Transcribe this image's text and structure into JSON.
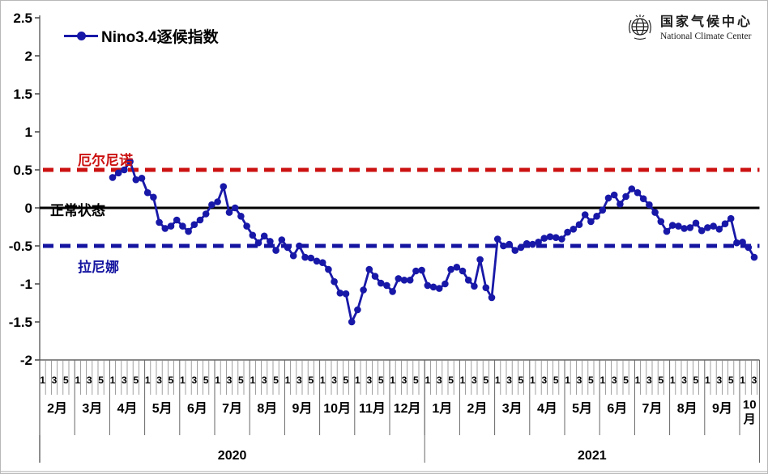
{
  "legend": {
    "label": "Nino3.4逐候指数"
  },
  "logo": {
    "cn": "国家气候中心",
    "en": "National Climate Center",
    "icon": "globe-icon"
  },
  "annotations": {
    "el_nino": "厄尔尼诺",
    "normal": "正常状态",
    "la_nina": "拉尼娜"
  },
  "colors": {
    "series": "#1818A8",
    "el_nino_line": "#CC1111",
    "normal_line": "#000000",
    "la_nina_line": "#1414A0",
    "grid": "#888888",
    "axis": "#333333"
  },
  "chart_data": {
    "type": "line",
    "title": "Nino3.4逐候指数",
    "ylabel": "",
    "xlabel": "",
    "ylim": [
      -2,
      2.5
    ],
    "yticks": [
      "2.5",
      "2",
      "1.5",
      "1",
      "0.5",
      "0",
      "-0.5",
      "-1",
      "-1.5",
      "-2"
    ],
    "legend_position": "top-left",
    "grid": "x-only-below-axis",
    "reference_lines": [
      {
        "name": "el_nino_threshold",
        "value": 0.5,
        "style": "dashed",
        "color": "#CC1111",
        "label": "厄尔尼诺"
      },
      {
        "name": "normal_state",
        "value": 0,
        "style": "solid",
        "color": "#000000",
        "label": "正常状态"
      },
      {
        "name": "la_nina_threshold",
        "value": -0.5,
        "style": "dashed",
        "color": "#1414A0",
        "label": "拉尼娜"
      }
    ],
    "x_axis": {
      "pentad_note": "each month divided into 6 pentads (候), ticks labeled 1/3/5",
      "months": [
        {
          "year": 2020,
          "label": "2月",
          "cells": 6,
          "ticks": [
            "1",
            "3",
            "5"
          ]
        },
        {
          "year": 2020,
          "label": "3月",
          "cells": 6,
          "ticks": [
            "1",
            "3",
            "5"
          ]
        },
        {
          "year": 2020,
          "label": "4月",
          "cells": 6,
          "ticks": [
            "1",
            "3",
            "5"
          ]
        },
        {
          "year": 2020,
          "label": "5月",
          "cells": 6,
          "ticks": [
            "1",
            "3",
            "5"
          ]
        },
        {
          "year": 2020,
          "label": "6月",
          "cells": 6,
          "ticks": [
            "1",
            "3",
            "5"
          ]
        },
        {
          "year": 2020,
          "label": "7月",
          "cells": 6,
          "ticks": [
            "1",
            "3",
            "5"
          ]
        },
        {
          "year": 2020,
          "label": "8月",
          "cells": 6,
          "ticks": [
            "1",
            "3",
            "5"
          ]
        },
        {
          "year": 2020,
          "label": "9月",
          "cells": 6,
          "ticks": [
            "1",
            "3",
            "5"
          ]
        },
        {
          "year": 2020,
          "label": "10月",
          "cells": 6,
          "ticks": [
            "1",
            "3",
            "5"
          ]
        },
        {
          "year": 2020,
          "label": "11月",
          "cells": 6,
          "ticks": [
            "1",
            "3",
            "5"
          ]
        },
        {
          "year": 2020,
          "label": "12月",
          "cells": 6,
          "ticks": [
            "1",
            "3",
            "5"
          ]
        },
        {
          "year": 2021,
          "label": "1月",
          "cells": 6,
          "ticks": [
            "1",
            "3",
            "5"
          ]
        },
        {
          "year": 2021,
          "label": "2月",
          "cells": 6,
          "ticks": [
            "1",
            "3",
            "5"
          ]
        },
        {
          "year": 2021,
          "label": "3月",
          "cells": 6,
          "ticks": [
            "1",
            "3",
            "5"
          ]
        },
        {
          "year": 2021,
          "label": "4月",
          "cells": 6,
          "ticks": [
            "1",
            "3",
            "5"
          ]
        },
        {
          "year": 2021,
          "label": "5月",
          "cells": 6,
          "ticks": [
            "1",
            "3",
            "5"
          ]
        },
        {
          "year": 2021,
          "label": "6月",
          "cells": 6,
          "ticks": [
            "1",
            "3",
            "5"
          ]
        },
        {
          "year": 2021,
          "label": "7月",
          "cells": 6,
          "ticks": [
            "1",
            "3",
            "5"
          ]
        },
        {
          "year": 2021,
          "label": "8月",
          "cells": 6,
          "ticks": [
            "1",
            "3",
            "5"
          ]
        },
        {
          "year": 2021,
          "label": "9月",
          "cells": 6,
          "ticks": [
            "1",
            "3",
            "5"
          ]
        },
        {
          "year": 2021,
          "label": "10月",
          "cells": 3.4,
          "ticks": [
            "1",
            "3"
          ],
          "label_lines": [
            "10",
            "月"
          ]
        }
      ],
      "years": [
        {
          "label": "2020",
          "from_month": 0,
          "to_month": 10
        },
        {
          "label": "2021",
          "from_month": 11,
          "to_month": 20
        }
      ]
    },
    "series": [
      {
        "name": "Nino3.4逐候指数",
        "color": "#1818A8",
        "marker": "circle",
        "start_month_index": 2,
        "values_by_month": [
          {
            "year": 2020,
            "month": "4月",
            "values": [
              0.4,
              0.46,
              0.5,
              0.61,
              0.37,
              0.39
            ]
          },
          {
            "year": 2020,
            "month": "5月",
            "values": [
              0.2,
              0.14,
              -0.19,
              -0.27,
              -0.24,
              -0.16
            ]
          },
          {
            "year": 2020,
            "month": "6月",
            "values": [
              -0.24,
              -0.31,
              -0.22,
              -0.16,
              -0.08,
              0.04
            ]
          },
          {
            "year": 2020,
            "month": "7月",
            "values": [
              0.08,
              0.28,
              -0.06,
              0.0,
              -0.11,
              -0.24
            ]
          },
          {
            "year": 2020,
            "month": "8月",
            "values": [
              -0.36,
              -0.46,
              -0.37,
              -0.44,
              -0.56,
              -0.42
            ]
          },
          {
            "year": 2020,
            "month": "9月",
            "values": [
              -0.52,
              -0.63,
              -0.5,
              -0.65,
              -0.66,
              -0.7
            ]
          },
          {
            "year": 2020,
            "month": "10月",
            "values": [
              -0.72,
              -0.81,
              -0.97,
              -1.12,
              -1.13,
              -1.5
            ]
          },
          {
            "year": 2020,
            "month": "11月",
            "values": [
              -1.34,
              -1.08,
              -0.81,
              -0.9,
              -0.99,
              -1.02
            ]
          },
          {
            "year": 2020,
            "month": "12月",
            "values": [
              -1.1,
              -0.93,
              -0.95,
              -0.95,
              -0.83,
              -0.82
            ]
          },
          {
            "year": 2021,
            "month": "1月",
            "values": [
              -1.02,
              -1.04,
              -1.06,
              -1.0,
              -0.81,
              -0.78
            ]
          },
          {
            "year": 2021,
            "month": "2月",
            "values": [
              -0.83,
              -0.95,
              -1.03,
              -0.68,
              -1.05,
              -1.18
            ]
          },
          {
            "year": 2021,
            "month": "3月",
            "values": [
              -0.41,
              -0.5,
              -0.48,
              -0.56,
              -0.52,
              -0.47
            ]
          },
          {
            "year": 2021,
            "month": "4月",
            "values": [
              -0.48,
              -0.45,
              -0.4,
              -0.38,
              -0.39,
              -0.41
            ]
          },
          {
            "year": 2021,
            "month": "5月",
            "values": [
              -0.32,
              -0.28,
              -0.22,
              -0.09,
              -0.18,
              -0.11
            ]
          },
          {
            "year": 2021,
            "month": "6月",
            "values": [
              -0.03,
              0.13,
              0.17,
              0.05,
              0.15,
              0.25
            ]
          },
          {
            "year": 2021,
            "month": "7月",
            "values": [
              0.2,
              0.12,
              0.04,
              -0.06,
              -0.18,
              -0.31
            ]
          },
          {
            "year": 2021,
            "month": "8月",
            "values": [
              -0.23,
              -0.24,
              -0.27,
              -0.26,
              -0.2,
              -0.3
            ]
          },
          {
            "year": 2021,
            "month": "9月",
            "values": [
              -0.26,
              -0.24,
              -0.28,
              -0.21,
              -0.14,
              -0.46
            ]
          },
          {
            "year": 2021,
            "month": "10月",
            "values": [
              -0.45,
              -0.52,
              -0.65
            ]
          }
        ]
      }
    ]
  }
}
